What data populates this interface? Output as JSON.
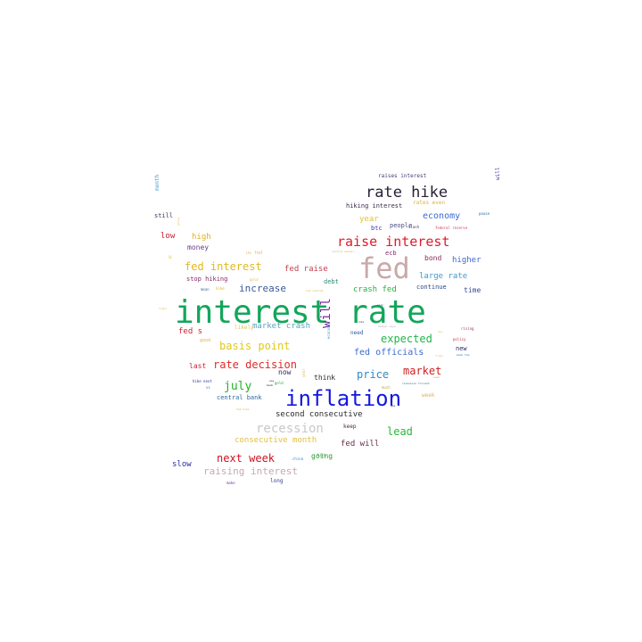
{
  "words": [
    {
      "text": "interest rate",
      "color": "#12a65a"
    },
    {
      "text": "fed",
      "color": "#c9a9a9"
    },
    {
      "text": "inflation",
      "color": "#1418e0"
    },
    {
      "text": "rate hike",
      "color": "#2a2036"
    },
    {
      "text": "raise interest",
      "color": "#e01a2a"
    },
    {
      "text": "fed interest",
      "color": "#e0b820"
    },
    {
      "text": "recession",
      "color": "#c8c8c8"
    },
    {
      "text": "basis point",
      "color": "#e0c81e"
    },
    {
      "text": "expected",
      "color": "#22b64a"
    },
    {
      "text": "rate decision",
      "color": "#e02a2a"
    },
    {
      "text": "market",
      "color": "#d02020"
    },
    {
      "text": "july",
      "color": "#22b422"
    },
    {
      "text": "next week",
      "color": "#d01020"
    },
    {
      "text": "will",
      "color": "#7a2aa0"
    },
    {
      "text": "increase",
      "color": "#3a5a9a"
    },
    {
      "text": "economy",
      "color": "#3a6ad0"
    },
    {
      "text": "price",
      "color": "#2a8ad0"
    },
    {
      "text": "fed officials",
      "color": "#3a6ad0"
    },
    {
      "text": "lead",
      "color": "#2ab83a"
    },
    {
      "text": "raising interest",
      "color": "#c8a8b0"
    },
    {
      "text": "consecutive month",
      "color": "#e0c040"
    },
    {
      "text": "second consecutive",
      "color": "#2a2a2a"
    },
    {
      "text": "fed raise",
      "color": "#c04050"
    },
    {
      "text": "large rate",
      "color": "#3a9ad0"
    },
    {
      "text": "crash fed",
      "color": "#2ab040"
    },
    {
      "text": "market crash",
      "color": "#5aa0c0"
    },
    {
      "text": "higher",
      "color": "#3a6ad0"
    },
    {
      "text": "year",
      "color": "#e0c040"
    },
    {
      "text": "money",
      "color": "#6a3a8a"
    },
    {
      "text": "fed will",
      "color": "#6a2a4a"
    },
    {
      "text": "going",
      "color": "#2a9a2a"
    },
    {
      "text": "slow",
      "color": "#2a2aa0"
    },
    {
      "text": "high",
      "color": "#e0b020"
    },
    {
      "text": "low",
      "color": "#c02030"
    },
    {
      "text": "bond",
      "color": "#8a2a5a"
    },
    {
      "text": "time",
      "color": "#3a4a9a"
    },
    {
      "text": "now",
      "color": "#2a2a6a"
    },
    {
      "text": "think",
      "color": "#2a2a2a"
    },
    {
      "text": "last",
      "color": "#d02030"
    },
    {
      "text": "fed s",
      "color": "#d02030"
    },
    {
      "text": "stop hiking",
      "color": "#8a2a6a"
    },
    {
      "text": "debt",
      "color": "#2a8a7a"
    },
    {
      "text": "continue",
      "color": "#2a4a8a"
    },
    {
      "text": "central bank",
      "color": "#2a6aa0"
    },
    {
      "text": "hiking interest",
      "color": "#3a2a4a"
    },
    {
      "text": "raises interest",
      "color": "#4a3a7a"
    },
    {
      "text": "btc",
      "color": "#3a3ab0"
    },
    {
      "text": "people",
      "color": "#4a4a8a"
    },
    {
      "text": "ecb",
      "color": "#8a2a6a"
    },
    {
      "text": "keep",
      "color": "#4a2a4a"
    },
    {
      "text": "long",
      "color": "#3a3a9a"
    },
    {
      "text": "need",
      "color": "#2a5aa0"
    },
    {
      "text": "new",
      "color": "#2a2a6a"
    },
    {
      "text": "still",
      "color": "#3a3a5a"
    },
    {
      "text": "likely",
      "color": "#e0c060"
    },
    {
      "text": "week",
      "color": "#e0b060"
    },
    {
      "text": "good",
      "color": "#e0b040"
    },
    {
      "text": "rates even",
      "color": "#e0b040"
    },
    {
      "text": "month",
      "color": "#3a9ad0"
    },
    {
      "text": "economic",
      "color": "#3a9ad0"
    },
    {
      "text": "much",
      "color": "#c0a040"
    },
    {
      "text": "policy",
      "color": "#c03040"
    },
    {
      "text": "rising",
      "color": "#a03a6a"
    },
    {
      "text": "us fed",
      "color": "#e0c060"
    },
    {
      "text": "gold",
      "color": "#e0c060"
    },
    {
      "text": "pause",
      "color": "#2a6aa0"
    },
    {
      "text": "mean",
      "color": "#3a6aa0"
    },
    {
      "text": "hike next",
      "color": "#2a2a9a"
    },
    {
      "text": "slash",
      "color": "#4a2a6a"
    },
    {
      "text": "federal reserve",
      "color": "#d04060"
    },
    {
      "text": "central banker",
      "color": "#e0b060"
    },
    {
      "text": "banker says",
      "color": "#c0a0b0"
    },
    {
      "text": "recession forcast",
      "color": "#2a6a8a"
    },
    {
      "text": "top central",
      "color": "#e0b040"
    },
    {
      "text": "china",
      "color": "#3a8ad0"
    },
    {
      "text": "make",
      "color": "#6a3a9a"
    },
    {
      "text": "hike",
      "color": "#e0b020"
    },
    {
      "text": "tight",
      "color": "#e0c060"
    },
    {
      "text": "sign",
      "color": "#2a6a8a"
    },
    {
      "text": "vs",
      "color": "#3a6ad0"
    },
    {
      "text": "gas",
      "color": "#2a2a6a"
    },
    {
      "text": "fed hike",
      "color": "#e0b040"
    },
    {
      "text": "bank",
      "color": "#2a2a2a"
    },
    {
      "text": "don",
      "color": "#e0c040"
    },
    {
      "text": "kick",
      "color": "#2aa040"
    },
    {
      "text": "say",
      "color": "#2a2a2a"
    },
    {
      "text": "rate",
      "color": "#3a3a6a"
    },
    {
      "text": "frame",
      "color": "#e0c080"
    },
    {
      "text": "bank fed",
      "color": "#3a6ad0"
    },
    {
      "text": "u",
      "color": "#e0c040"
    },
    {
      "text": "going",
      "color": "#e0c040"
    },
    {
      "text": "will",
      "color": "#3a3a9a"
    },
    {
      "text": "gold",
      "color": "#2aa040"
    },
    {
      "text": "year",
      "color": "#e0c040"
    },
    {
      "text": "crypto",
      "color": "#e0c040"
    },
    {
      "text": "week",
      "color": "#e0b040"
    }
  ]
}
